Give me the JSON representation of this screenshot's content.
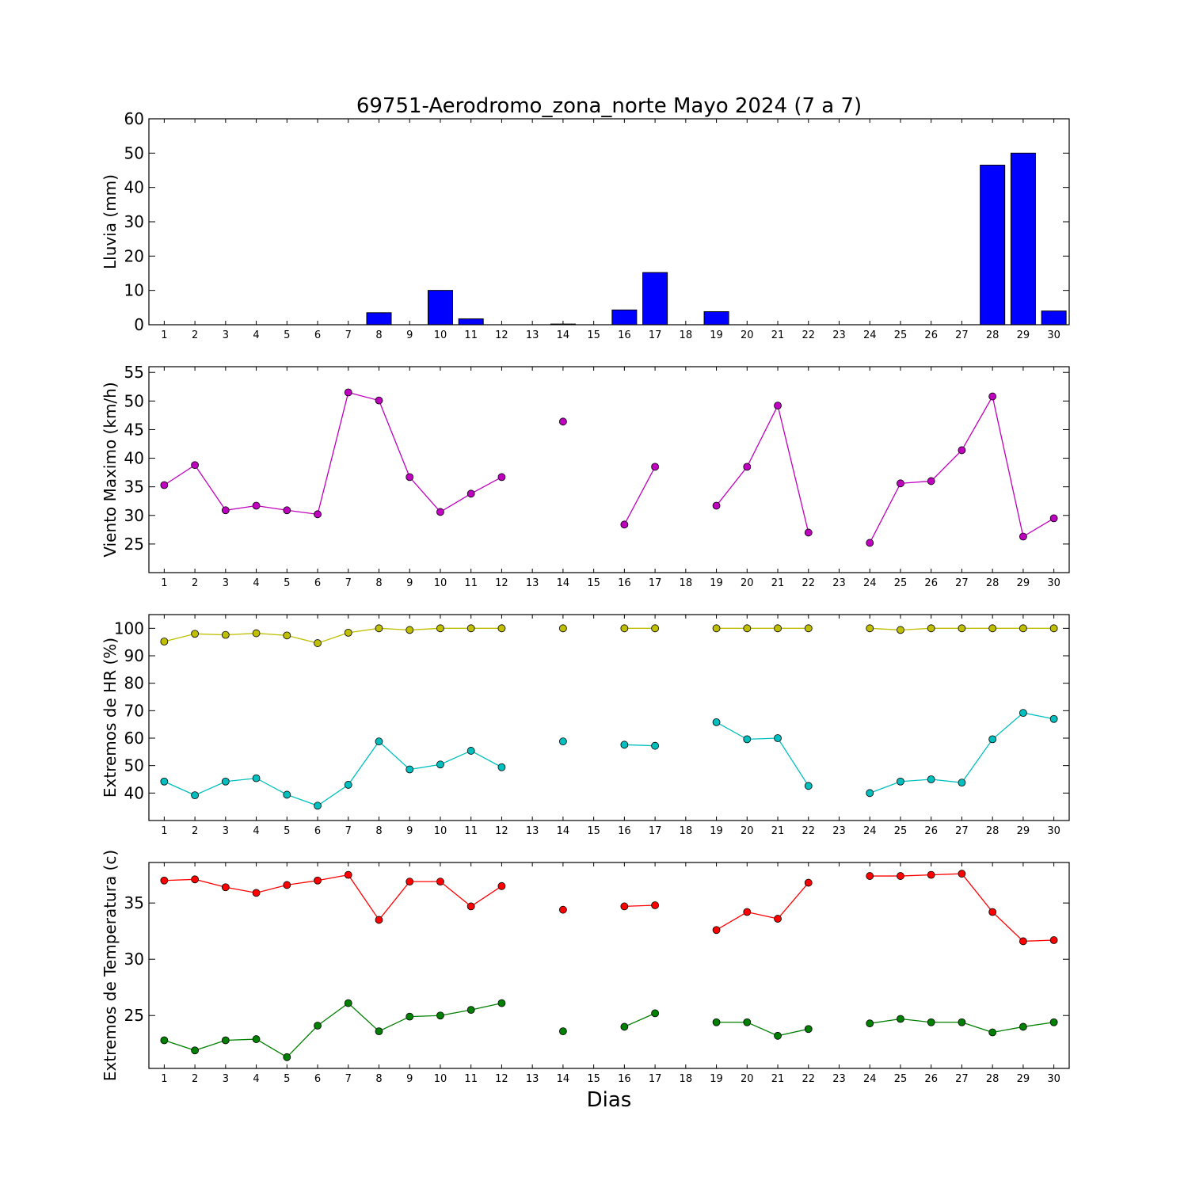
{
  "title": "69751-Aerodromo_zona_norte Mayo 2024  (7 a 7)",
  "xlabel": "Dias",
  "colors": {
    "bars": "#0000ff",
    "wind": "#bf00bf",
    "hr_max": "#bfbf00",
    "hr_min": "#00bfbf",
    "t_max": "#ff0000",
    "t_min": "#008000"
  },
  "chart_data": [
    {
      "type": "bar",
      "ylabel": "Lluvia (mm)",
      "ylim": [
        0,
        60
      ],
      "yticks": [
        0,
        10,
        20,
        30,
        40,
        50,
        60
      ],
      "categories": [
        "1",
        "2",
        "3",
        "4",
        "5",
        "6",
        "7",
        "8",
        "9",
        "10",
        "11",
        "12",
        "13",
        "14",
        "15",
        "16",
        "17",
        "18",
        "19",
        "20",
        "21",
        "22",
        "23",
        "24",
        "25",
        "26",
        "27",
        "28",
        "29",
        "30"
      ],
      "x": [
        1,
        2,
        3,
        4,
        5,
        6,
        7,
        8,
        9,
        10,
        11,
        12,
        14,
        15,
        16,
        17,
        19,
        20,
        21,
        22,
        24,
        25,
        26,
        27,
        28,
        29,
        30
      ],
      "values": [
        0,
        0,
        0,
        0,
        0,
        0,
        0,
        3.5,
        0,
        10,
        1.7,
        0,
        0.2,
        0,
        4.3,
        15.2,
        3.8,
        0,
        0,
        0,
        0,
        0,
        0,
        0,
        46.5,
        50,
        4.0
      ],
      "grid": false
    },
    {
      "type": "line",
      "ylabel": "Viento Maximo (km/h)",
      "ylim": [
        20,
        56
      ],
      "yticks": [
        25,
        30,
        35,
        40,
        45,
        50,
        55
      ],
      "categories": [
        "1",
        "2",
        "3",
        "4",
        "5",
        "6",
        "7",
        "8",
        "9",
        "10",
        "11",
        "12",
        "13",
        "14",
        "15",
        "16",
        "17",
        "18",
        "19",
        "20",
        "21",
        "22",
        "23",
        "24",
        "25",
        "26",
        "27",
        "28",
        "29",
        "30"
      ],
      "series": [
        {
          "x": [
            1,
            2,
            3,
            4,
            5,
            6,
            7,
            8,
            9,
            10,
            11,
            12,
            13,
            14,
            15,
            16,
            17,
            18,
            19,
            20,
            21,
            22,
            23,
            24,
            25,
            26,
            27,
            28,
            29,
            30
          ],
          "values": [
            35.3,
            38.8,
            30.9,
            31.7,
            30.9,
            30.2,
            51.5,
            50.1,
            36.7,
            30.6,
            33.8,
            36.7,
            null,
            46.4,
            null,
            28.4,
            38.5,
            null,
            31.7,
            38.5,
            49.2,
            27.0,
            null,
            25.2,
            35.6,
            36.0,
            41.4,
            50.8,
            26.3,
            29.5
          ]
        }
      ],
      "grid": false
    },
    {
      "type": "line",
      "ylabel": "Extremos de HR (%)",
      "ylim": [
        30,
        105
      ],
      "yticks": [
        40,
        50,
        60,
        70,
        80,
        90,
        100
      ],
      "categories": [
        "1",
        "2",
        "3",
        "4",
        "5",
        "6",
        "7",
        "8",
        "9",
        "10",
        "11",
        "12",
        "13",
        "14",
        "15",
        "16",
        "17",
        "18",
        "19",
        "20",
        "21",
        "22",
        "23",
        "24",
        "25",
        "26",
        "27",
        "28",
        "29",
        "30"
      ],
      "series": [
        {
          "x": [
            1,
            2,
            3,
            4,
            5,
            6,
            7,
            8,
            9,
            10,
            11,
            12,
            13,
            14,
            15,
            16,
            17,
            18,
            19,
            20,
            21,
            22,
            23,
            24,
            25,
            26,
            27,
            28,
            29,
            30
          ],
          "values": [
            95.2,
            98.0,
            97.6,
            98.2,
            97.4,
            94.6,
            98.4,
            100,
            99.4,
            100,
            100,
            100,
            null,
            100,
            null,
            100,
            100,
            null,
            100,
            100,
            100,
            100,
            null,
            100,
            99.4,
            100,
            100,
            100,
            100,
            100
          ]
        },
        {
          "x": [
            1,
            2,
            3,
            4,
            5,
            6,
            7,
            8,
            9,
            10,
            11,
            12,
            13,
            14,
            15,
            16,
            17,
            18,
            19,
            20,
            21,
            22,
            23,
            24,
            25,
            26,
            27,
            28,
            29,
            30
          ],
          "values": [
            44.2,
            39.2,
            44.2,
            45.4,
            39.4,
            35.4,
            43.0,
            58.8,
            48.6,
            50.4,
            55.4,
            49.4,
            null,
            58.8,
            null,
            57.6,
            57.2,
            null,
            65.8,
            59.6,
            60.0,
            42.6,
            null,
            40.0,
            44.2,
            45.0,
            43.8,
            59.6,
            69.2,
            67.0
          ]
        }
      ],
      "grid": false
    },
    {
      "type": "line",
      "ylabel": "Extremos de Temperatura (c)",
      "ylim": [
        20.3,
        38.6
      ],
      "yticks": [
        25,
        30,
        35
      ],
      "categories": [
        "1",
        "2",
        "3",
        "4",
        "5",
        "6",
        "7",
        "8",
        "9",
        "10",
        "11",
        "12",
        "13",
        "14",
        "15",
        "16",
        "17",
        "18",
        "19",
        "20",
        "21",
        "22",
        "23",
        "24",
        "25",
        "26",
        "27",
        "28",
        "29",
        "30"
      ],
      "series": [
        {
          "x": [
            1,
            2,
            3,
            4,
            5,
            6,
            7,
            8,
            9,
            10,
            11,
            12,
            13,
            14,
            15,
            16,
            17,
            18,
            19,
            20,
            21,
            22,
            23,
            24,
            25,
            26,
            27,
            28,
            29,
            30
          ],
          "values": [
            37.0,
            37.1,
            36.4,
            35.9,
            36.6,
            37.0,
            37.5,
            33.5,
            36.9,
            36.9,
            34.7,
            36.5,
            null,
            34.4,
            null,
            34.7,
            34.8,
            null,
            32.6,
            34.2,
            33.6,
            36.8,
            null,
            37.4,
            37.4,
            37.5,
            37.6,
            34.2,
            31.6,
            31.7
          ]
        },
        {
          "x": [
            1,
            2,
            3,
            4,
            5,
            6,
            7,
            8,
            9,
            10,
            11,
            12,
            13,
            14,
            15,
            16,
            17,
            18,
            19,
            20,
            21,
            22,
            23,
            24,
            25,
            26,
            27,
            28,
            29,
            30
          ],
          "values": [
            22.8,
            21.9,
            22.8,
            22.9,
            21.3,
            24.1,
            26.1,
            23.6,
            24.9,
            25.0,
            25.5,
            26.1,
            null,
            23.6,
            null,
            24.0,
            25.2,
            null,
            24.4,
            24.4,
            23.2,
            23.8,
            null,
            24.3,
            24.7,
            24.4,
            24.4,
            23.5,
            24.0,
            24.4
          ]
        }
      ],
      "grid": false
    }
  ]
}
